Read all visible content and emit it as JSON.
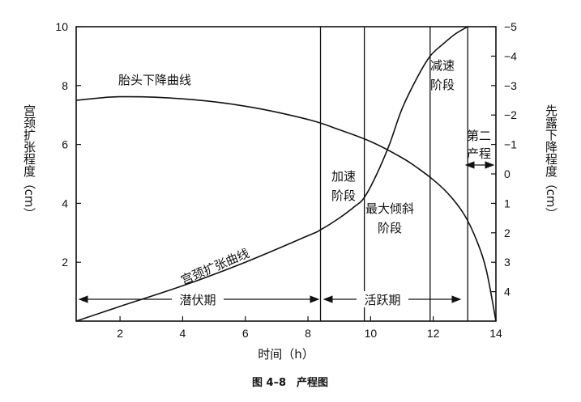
{
  "chart_data": {
    "type": "line",
    "caption": "图 4–8　产程图",
    "xlabel": "时间（h）",
    "ylabel_left": "宫颈扩张程度（cm）",
    "ylabel_right": "先露下降程度（cm）",
    "xlim": [
      0.6,
      14
    ],
    "ylim_left": [
      0,
      10
    ],
    "ylim_right": [
      -5,
      5
    ],
    "x_ticks": [
      "2",
      "4",
      "6",
      "8",
      "10",
      "12",
      "14"
    ],
    "x_tick_values": [
      2,
      4,
      6,
      8,
      10,
      12,
      14
    ],
    "y_left_ticks": [
      "2",
      "4",
      "6",
      "8",
      "10"
    ],
    "y_left_tick_values": [
      2,
      4,
      6,
      8,
      10
    ],
    "y_right_ticks": [
      "−5",
      "−4",
      "−3",
      "−2",
      "−1",
      "0",
      "1",
      "2",
      "3",
      "4"
    ],
    "y_right_tick_values": [
      -5,
      -4,
      -3,
      -2,
      -1,
      0,
      1,
      2,
      3,
      4
    ],
    "phase_boundaries": [
      8.4,
      9.8,
      11.9,
      13.1
    ],
    "series": [
      {
        "name": "宫颈扩张曲线",
        "axis": "left",
        "x": [
          0.6,
          2,
          4,
          6,
          8,
          8.4,
          9,
          9.5,
          9.8,
          10.2,
          10.6,
          11,
          11.5,
          11.9,
          12.3,
          12.7,
          13.1
        ],
        "y": [
          0,
          0.5,
          1.2,
          2.0,
          2.9,
          3.1,
          3.5,
          3.9,
          4.2,
          5.0,
          6.0,
          7.2,
          8.3,
          9.0,
          9.4,
          9.75,
          10.0
        ]
      },
      {
        "name": "胎头下降曲线",
        "axis": "right",
        "x": [
          0.6,
          2,
          4,
          6,
          8,
          9,
          10,
          11,
          11.5,
          12,
          12.5,
          13,
          13.4,
          13.7,
          14
        ],
        "y": [
          -2.5,
          -2.62,
          -2.55,
          -2.3,
          -1.85,
          -1.5,
          -1.1,
          -0.55,
          -0.2,
          0.2,
          0.7,
          1.4,
          2.3,
          3.3,
          5.0
        ]
      }
    ],
    "annotations": {
      "descent_curve_label": "胎头下降曲线",
      "dilation_curve_label": "宫颈扩张曲线",
      "latent_phase": "潜伏期",
      "active_phase": "活跃期",
      "acceleration_1": "加速",
      "acceleration_2": "阶段",
      "max_slope_1": "最大倾斜",
      "max_slope_2": "阶段",
      "deceleration_1": "减速",
      "deceleration_2": "阶段",
      "second_stage_1": "第二",
      "second_stage_2": "产程"
    }
  }
}
